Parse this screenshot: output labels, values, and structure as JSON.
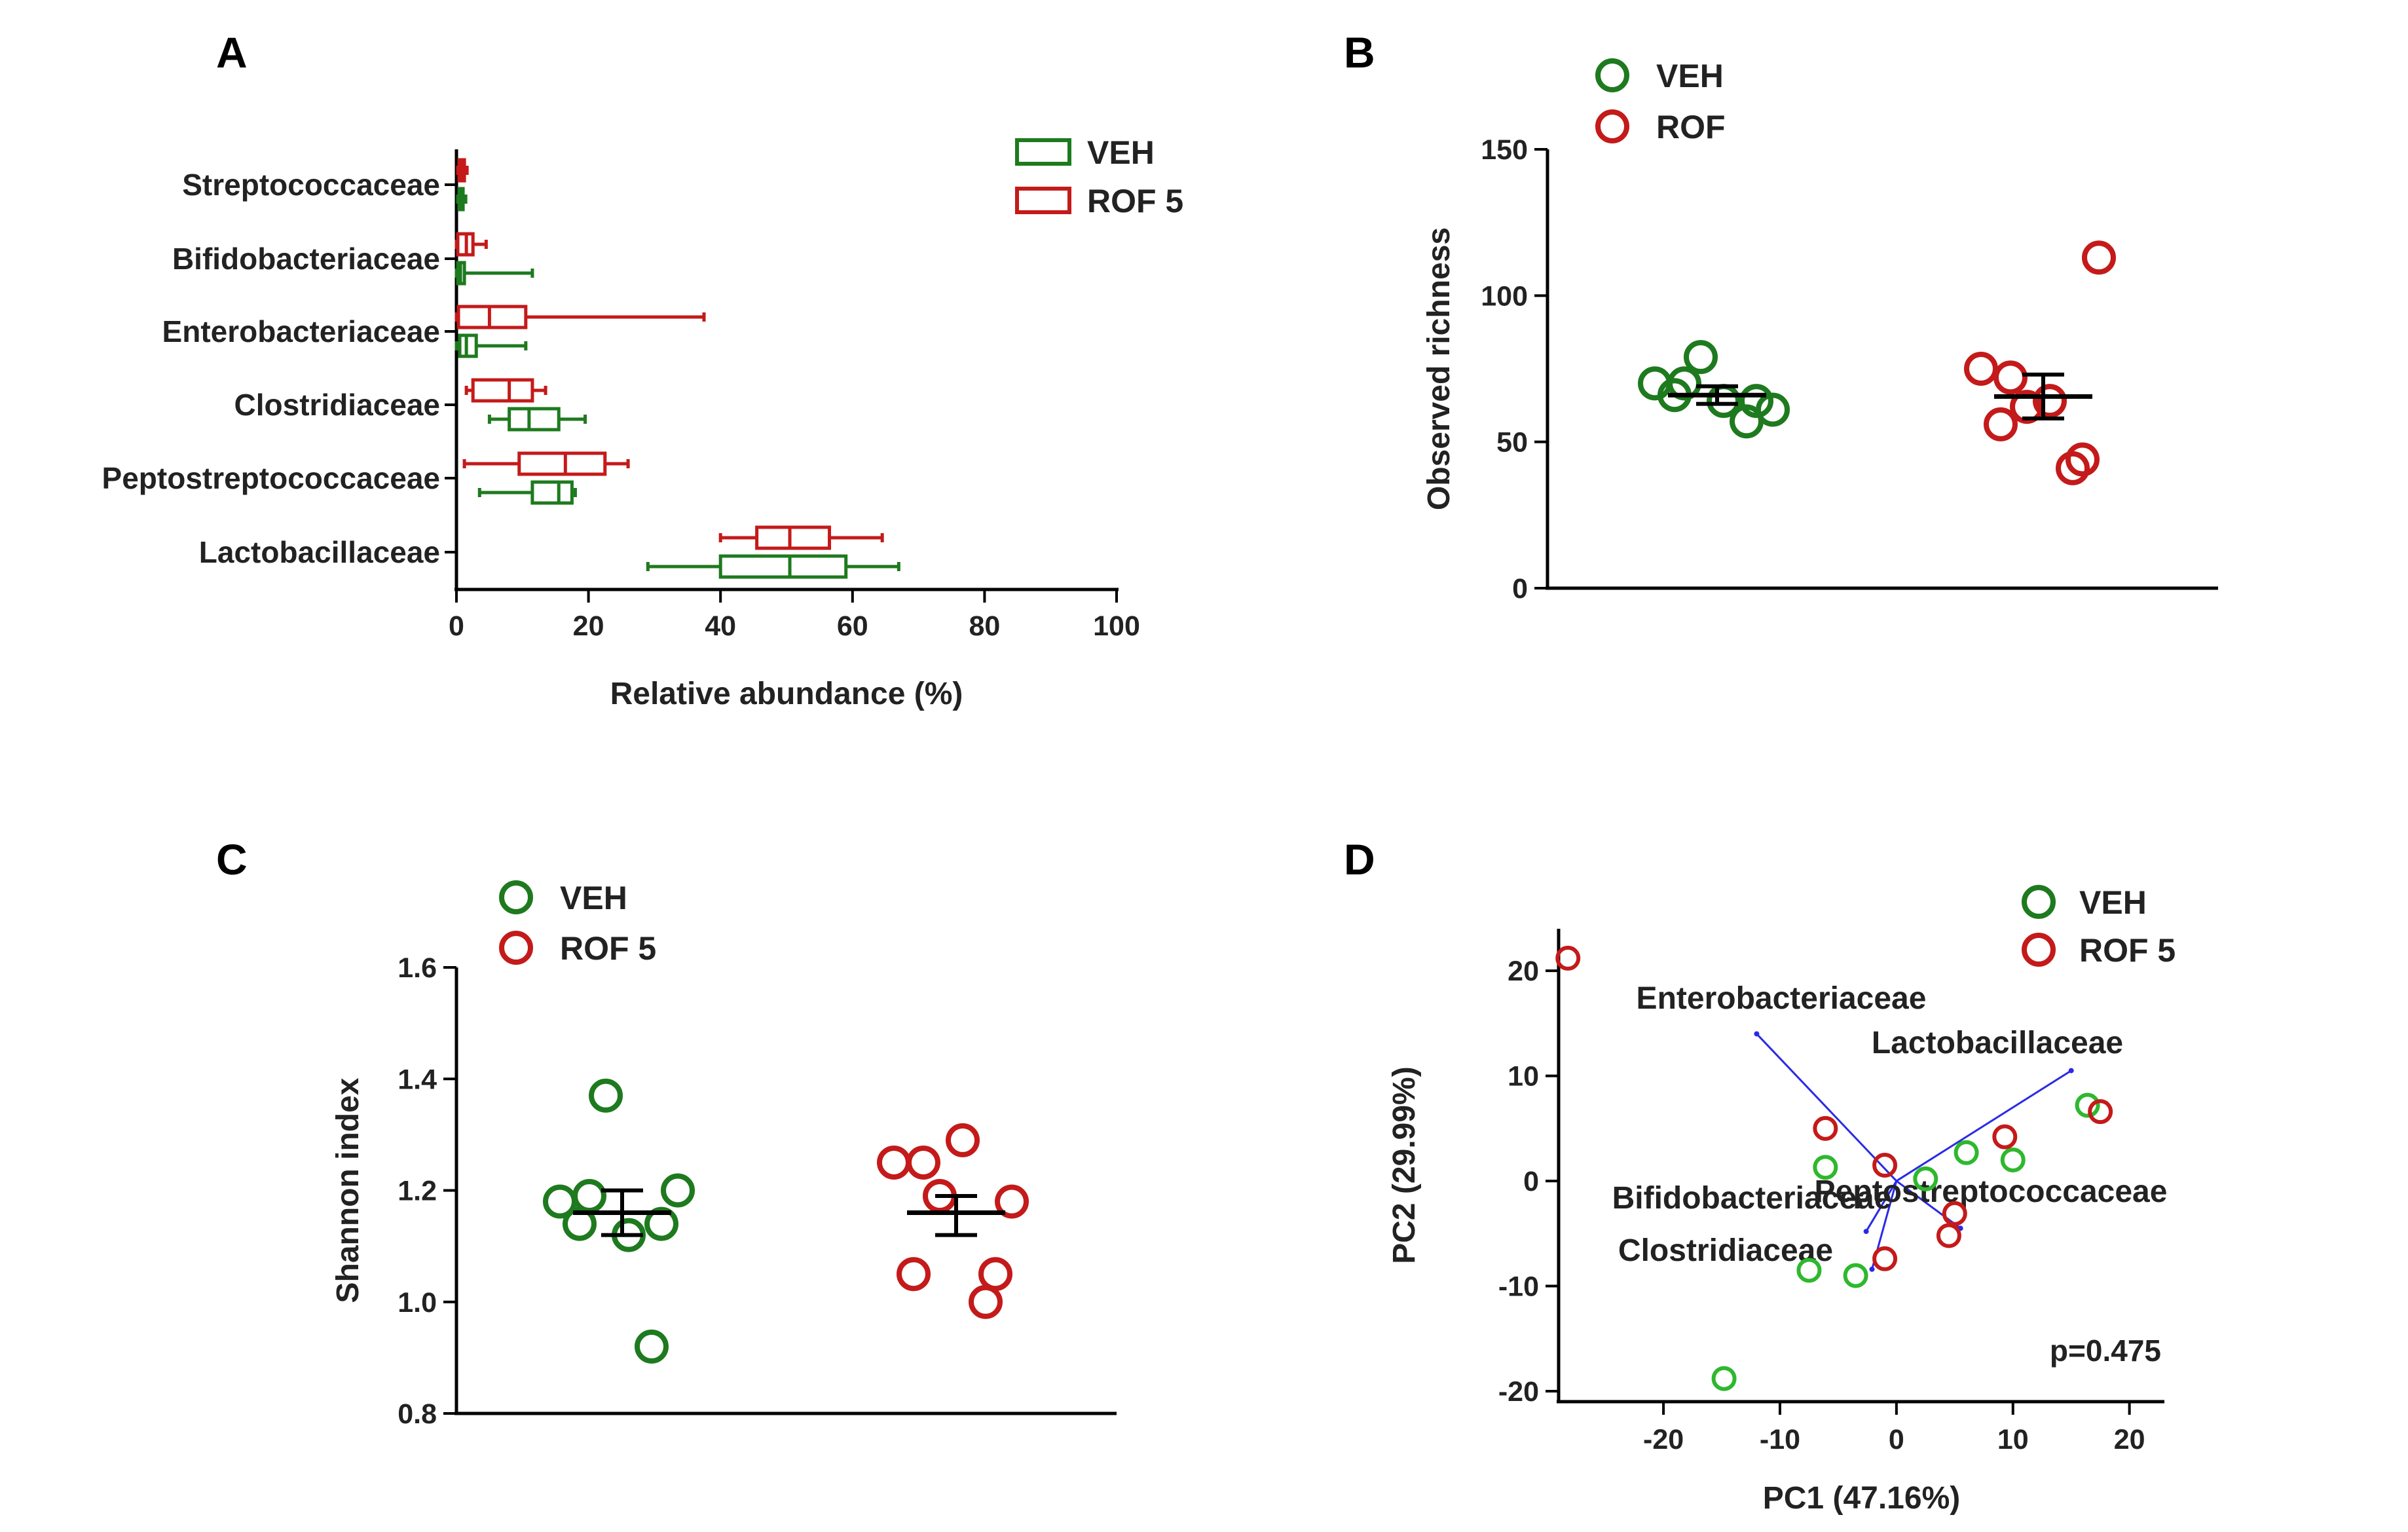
{
  "colors": {
    "veh": "#1e7a1e",
    "rof": "#c41a1a",
    "veh_pca": "#2eb82e",
    "loading": "#2a2ae6",
    "axis": "#000000"
  },
  "chart_data": [
    {
      "panel": "A",
      "type": "boxplot",
      "orientation": "horizontal",
      "xlabel": "Relative abundance (%)",
      "xlim": [
        0,
        100
      ],
      "xticks": [
        "0",
        "20",
        "40",
        "60",
        "80",
        "100"
      ],
      "categories": [
        "Streptococcaceae",
        "Bifidobacteriaceae",
        "Enterobacteriaceae",
        "Clostridiaceae",
        "Peptostreptococcaceae",
        "Lactobacillaceae"
      ],
      "legend": [
        "VEH",
        "ROF 5"
      ],
      "series": [
        {
          "name": "ROF 5",
          "boxes": [
            {
              "min": 0.2,
              "q1": 0.4,
              "median": 0.8,
              "q3": 1.2,
              "max": 1.6
            },
            {
              "min": 0,
              "q1": 0.2,
              "median": 1.5,
              "q3": 2.5,
              "max": 4.5
            },
            {
              "min": 0,
              "q1": 0.3,
              "median": 5,
              "q3": 10.5,
              "max": 37.5
            },
            {
              "min": 1.5,
              "q1": 2.5,
              "median": 8,
              "q3": 11.5,
              "max": 13.5
            },
            {
              "min": 1.2,
              "q1": 9.5,
              "median": 16.5,
              "q3": 22.5,
              "max": 26
            },
            {
              "min": 40,
              "q1": 45.5,
              "median": 50.5,
              "q3": 56.5,
              "max": 64.5
            }
          ]
        },
        {
          "name": "VEH",
          "boxes": [
            {
              "min": 0.2,
              "q1": 0.4,
              "median": 0.7,
              "q3": 1.0,
              "max": 1.4
            },
            {
              "min": 0,
              "q1": 0.2,
              "median": 0.6,
              "q3": 1.2,
              "max": 11.5
            },
            {
              "min": 0,
              "q1": 0.5,
              "median": 1.5,
              "q3": 3,
              "max": 10.5
            },
            {
              "min": 5,
              "q1": 8,
              "median": 11,
              "q3": 15.5,
              "max": 19.5
            },
            {
              "min": 3.5,
              "q1": 11.5,
              "median": 15.5,
              "q3": 17.5,
              "max": 18
            },
            {
              "min": 29,
              "q1": 40,
              "median": 50.5,
              "q3": 59,
              "max": 67
            }
          ]
        }
      ]
    },
    {
      "panel": "B",
      "type": "dot",
      "ylabel": "Observed richness",
      "ylim": [
        0,
        150
      ],
      "yticks": [
        "0",
        "50",
        "100",
        "150"
      ],
      "legend": [
        "VEH",
        "ROF"
      ],
      "groups": [
        {
          "name": "VEH",
          "mean": 66,
          "sem_low": 63,
          "sem_high": 69,
          "points": [
            70,
            66,
            79,
            64,
            57,
            61,
            64,
            70
          ]
        },
        {
          "name": "ROF",
          "mean": 65.5,
          "sem_low": 58,
          "sem_high": 73,
          "points": [
            75,
            56,
            62,
            64,
            41,
            113,
            44,
            72
          ]
        }
      ]
    },
    {
      "panel": "C",
      "type": "dot",
      "ylabel": "Shannon index",
      "ylim": [
        0.8,
        1.6
      ],
      "yticks": [
        "0.8",
        "1.0",
        "1.2",
        "1.4",
        "1.6"
      ],
      "legend": [
        "VEH",
        "ROF 5"
      ],
      "groups": [
        {
          "name": "VEH",
          "mean": 1.16,
          "sem_low": 1.12,
          "sem_high": 1.2,
          "points": [
            1.18,
            1.14,
            1.37,
            1.12,
            0.92,
            1.2,
            1.14,
            1.19
          ]
        },
        {
          "name": "ROF 5",
          "mean": 1.16,
          "sem_low": 1.12,
          "sem_high": 1.19,
          "points": [
            1.25,
            1.05,
            1.19,
            1.29,
            1.0,
            1.18,
            1.05,
            1.25
          ]
        }
      ]
    },
    {
      "panel": "D",
      "type": "scatter",
      "xlabel": "PC1 (47.16%)",
      "ylabel": "PC2 (29.99%)",
      "xlim": [
        -29,
        23
      ],
      "ylim": [
        -21,
        24
      ],
      "xticks": [
        "-20",
        "-10",
        "0",
        "10",
        "20"
      ],
      "yticks": [
        "-20",
        "-10",
        "0",
        "10",
        "20"
      ],
      "legend": [
        "VEH",
        "ROF 5"
      ],
      "annotation": "p=0.475",
      "series": [
        {
          "name": "VEH",
          "points": [
            [
              -14.8,
              -18.8
            ],
            [
              -7.5,
              -8.5
            ],
            [
              -3.5,
              -9.0
            ],
            [
              -6.1,
              1.3
            ],
            [
              2.5,
              0.2
            ],
            [
              6.0,
              2.7
            ],
            [
              10.0,
              2.0
            ],
            [
              16.4,
              7.2
            ]
          ]
        },
        {
          "name": "ROF 5",
          "points": [
            [
              -28.2,
              21.2
            ],
            [
              -6.1,
              5.0
            ],
            [
              -1.0,
              1.5
            ],
            [
              -1.0,
              -7.4
            ],
            [
              4.5,
              -5.2
            ],
            [
              5.0,
              -3.1
            ],
            [
              9.3,
              4.2
            ],
            [
              17.5,
              6.6
            ]
          ]
        }
      ],
      "loadings": [
        {
          "label": "Enterobacteriaceae",
          "x": -12,
          "y": 14
        },
        {
          "label": "Lactobacillaceae",
          "x": 15,
          "y": 10.5
        },
        {
          "label": "Bifidobacteriaceae",
          "x": -2.6,
          "y": -4.8
        },
        {
          "label": "Clostridiaceae",
          "x": -2.1,
          "y": -8.4
        },
        {
          "label": "Peptostreptococcaceae",
          "x": 5.5,
          "y": -4.5
        }
      ]
    }
  ]
}
